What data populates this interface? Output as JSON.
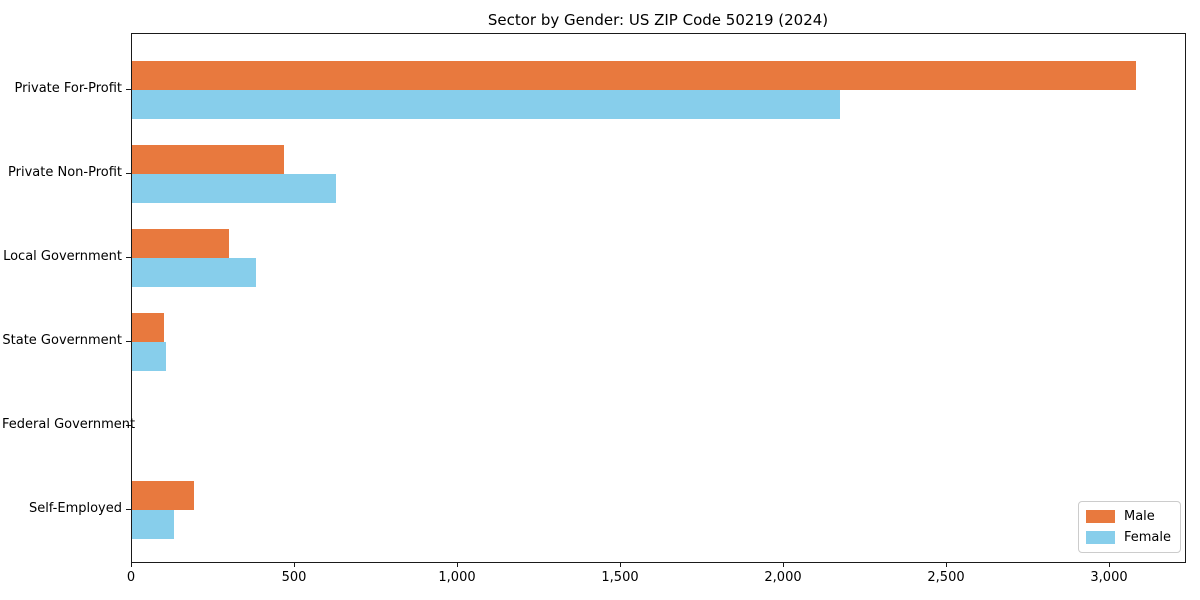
{
  "chart_data": {
    "type": "bar",
    "orientation": "horizontal",
    "title": "Sector by Gender: US ZIP Code 50219 (2024)",
    "categories": [
      "Private For-Profit",
      "Private Non-Profit",
      "Local Government",
      "State Government",
      "Federal Government",
      "Self-Employed"
    ],
    "series": [
      {
        "name": "Male",
        "color": "#e8793e",
        "values": [
          3080,
          466,
          297,
          98,
          0,
          190
        ]
      },
      {
        "name": "Female",
        "color": "#87ceeb",
        "values": [
          2173,
          625,
          380,
          105,
          0,
          130
        ]
      }
    ],
    "xlabel": "",
    "ylabel": "",
    "xlim": [
      0,
      3234
    ],
    "x_ticks": {
      "values": [
        0,
        500,
        1000,
        1500,
        2000,
        2500,
        3000
      ],
      "labels": [
        "0",
        "500",
        "1,000",
        "1,500",
        "2,000",
        "2,500",
        "3,000"
      ]
    },
    "grid": false,
    "legend": {
      "position": "lower right",
      "entries": [
        "Male",
        "Female"
      ]
    }
  }
}
